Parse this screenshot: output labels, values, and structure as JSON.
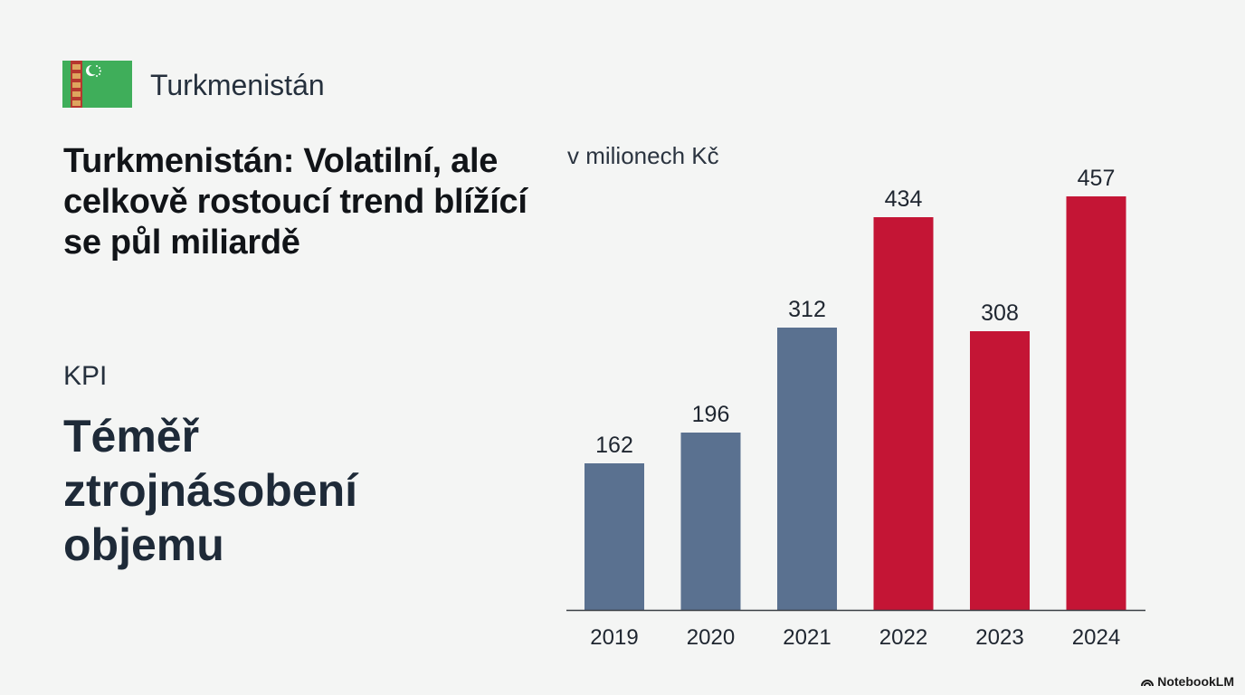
{
  "country": "Turkmenistán",
  "headline": "Turkmenistán: Volatilní, ale celkově rostoucí trend blížící se půl miliardě",
  "kpi": {
    "label": "KPI",
    "value": "Téměř ztrojnásobení objemu"
  },
  "brand": "NotebookLM",
  "colors": {
    "past": "#5a7190",
    "recent": "#c41535",
    "flag_green": "#3fae5a",
    "flag_stripe": "#b5372f"
  },
  "chart_data": {
    "type": "bar",
    "unit_label": "v milionech Kč",
    "categories": [
      "2019",
      "2020",
      "2021",
      "2022",
      "2023",
      "2024"
    ],
    "values": [
      162,
      196,
      312,
      434,
      308,
      457
    ],
    "bar_colors": [
      "#5a7190",
      "#5a7190",
      "#5a7190",
      "#c41535",
      "#c41535",
      "#c41535"
    ],
    "ylim": [
      0,
      500
    ],
    "grid": false,
    "legend": "none"
  }
}
